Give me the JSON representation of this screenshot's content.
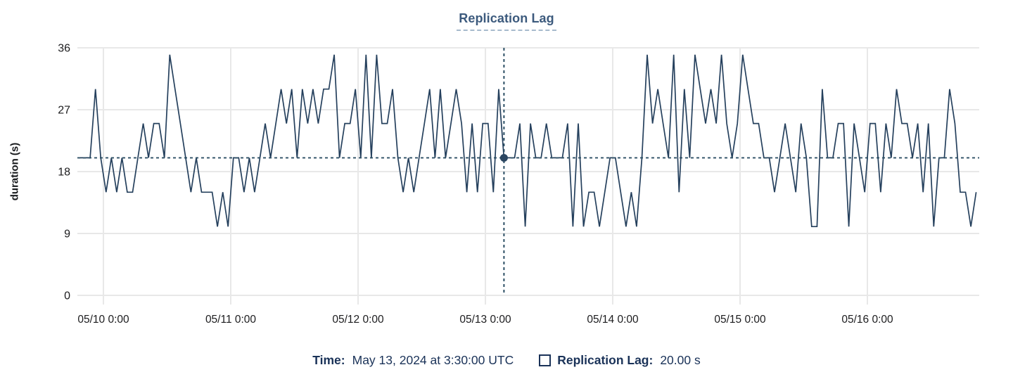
{
  "header": {
    "title": "Replication Lag"
  },
  "y_axis": {
    "title": "duration (s)",
    "tick_labels": [
      "0",
      "9",
      "18",
      "27",
      "36"
    ]
  },
  "x_axis": {
    "tick_labels": [
      "05/10 0:00",
      "05/11 0:00",
      "05/12 0:00",
      "05/13 0:00",
      "05/14 0:00",
      "05/15 0:00",
      "05/16 0:00"
    ]
  },
  "footer": {
    "time_label": "Time:",
    "time_value": "May 13, 2024 at 3:30:00 UTC",
    "series_swatch": "square-outline-icon",
    "series_label": "Replication Lag:",
    "series_value": "20.00 s"
  },
  "colors": {
    "series_line": "#25405d",
    "crosshair": "#2c4f64",
    "crosshair_dot": "#2b4661",
    "grid": "#e8e8e8",
    "tick_text": "#1c1c1e",
    "title_text": "#3c5a7d",
    "title_underline": "#a7bacd",
    "footer_text": "#1a3258",
    "background": "#ffffff"
  },
  "chart_data": {
    "type": "line",
    "title": "Replication Lag",
    "xlabel": "",
    "ylabel": "duration (s)",
    "ylim": [
      0,
      36
    ],
    "yticks": [
      0,
      9,
      18,
      27,
      36
    ],
    "x_tick_labels": [
      "05/10 0:00",
      "05/11 0:00",
      "05/12 0:00",
      "05/13 0:00",
      "05/14 0:00",
      "05/15 0:00",
      "05/16 0:00"
    ],
    "x_start": "2024-05-09 19:30 UTC",
    "x_interval_hours": 1,
    "grid": true,
    "legend_position": "bottom",
    "series": [
      {
        "name": "Replication Lag",
        "unit": "s",
        "values": [
          20,
          20,
          20,
          30,
          20,
          15,
          20,
          15,
          20,
          15,
          15,
          20,
          25,
          20,
          25,
          25,
          20,
          35,
          30,
          25,
          20,
          15,
          20,
          15,
          15,
          15,
          10,
          15,
          10,
          20,
          20,
          15,
          20,
          15,
          20,
          25,
          20,
          25,
          30,
          25,
          30,
          20,
          30,
          25,
          30,
          25,
          30,
          30,
          35,
          20,
          25,
          25,
          30,
          20,
          35,
          20,
          35,
          25,
          25,
          30,
          20,
          15,
          20,
          15,
          20,
          25,
          30,
          20,
          30,
          20,
          25,
          30,
          25,
          15,
          25,
          15,
          25,
          25,
          15,
          30,
          20,
          20,
          20,
          25,
          10,
          25,
          20,
          20,
          25,
          20,
          20,
          20,
          25,
          10,
          25,
          10,
          15,
          15,
          10,
          15,
          20,
          20,
          15,
          10,
          15,
          10,
          20,
          35,
          25,
          30,
          25,
          20,
          35,
          15,
          30,
          20,
          35,
          30,
          25,
          30,
          25,
          35,
          25,
          20,
          25,
          35,
          30,
          25,
          25,
          20,
          20,
          15,
          20,
          25,
          20,
          15,
          25,
          20,
          10,
          10,
          30,
          20,
          20,
          25,
          25,
          10,
          25,
          20,
          15,
          25,
          25,
          15,
          25,
          20,
          30,
          25,
          25,
          20,
          25,
          15,
          25,
          10,
          20,
          20,
          30,
          25,
          15,
          15,
          10,
          15
        ]
      }
    ],
    "crosshair": {
      "index": 80,
      "time": "May 13, 2024 at 3:30:00 UTC",
      "value": 20.0
    }
  }
}
